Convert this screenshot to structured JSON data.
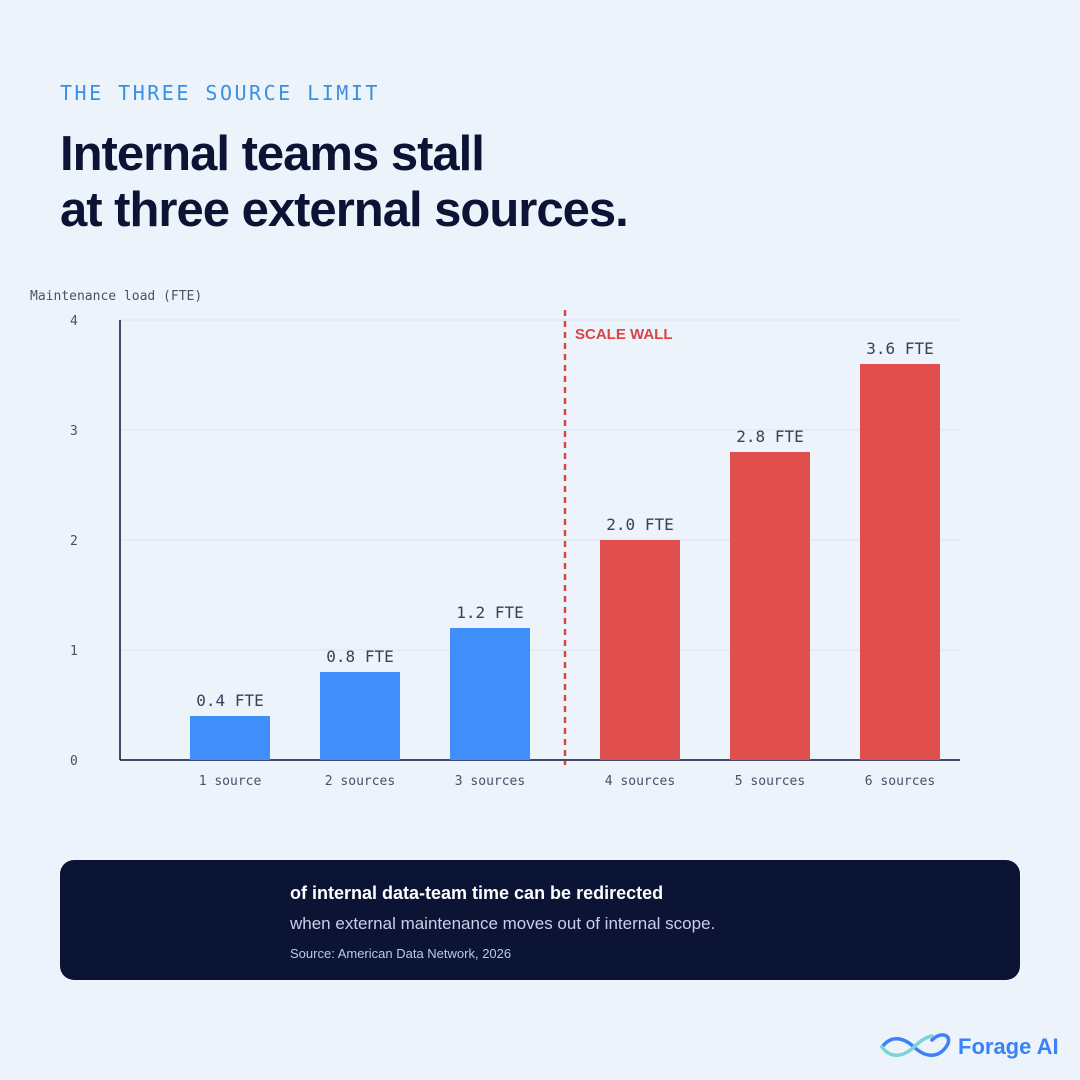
{
  "eyebrow": "THE THREE SOURCE LIMIT",
  "title_lines": [
    "Internal teams stall",
    "at three external sources."
  ],
  "chart_data": {
    "type": "bar",
    "y_label": "Maintenance load (FTE)",
    "categories": [
      "1 source",
      "2 sources",
      "3 sources",
      "4 sources",
      "5 sources",
      "6 sources"
    ],
    "values": [
      0.4,
      0.8,
      1.2,
      2.0,
      2.8,
      3.6
    ],
    "value_labels": [
      "0.4 FTE",
      "0.8 FTE",
      "1.2 FTE",
      "2.0 FTE",
      "2.8 FTE",
      "3.6 FTE"
    ],
    "colors": [
      "#3f8ef9",
      "#3f8ef9",
      "#3f8ef9",
      "#e04e4e",
      "#e04e4e",
      "#e04e4e"
    ],
    "ylim": [
      0,
      4
    ],
    "yticks": [
      0,
      1,
      2,
      3,
      4
    ],
    "grid": true,
    "annotation": "SCALE WALL"
  },
  "callout": {
    "headline": "of internal data-team time can be redirected",
    "text": "when external maintenance moves out of internal scope.",
    "source": "Source: American Data Network, 2026"
  },
  "brand": "Forage AI"
}
